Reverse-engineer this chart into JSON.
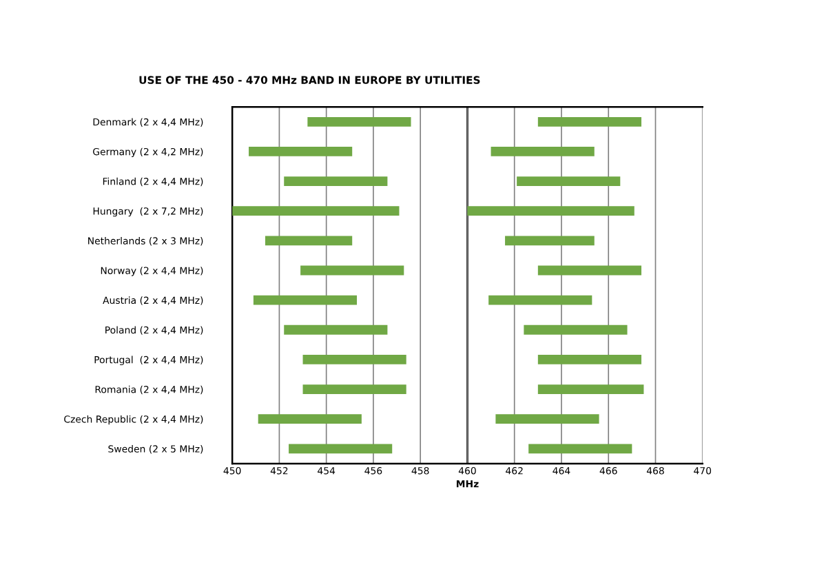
{
  "chart_data": {
    "type": "bar",
    "orientation": "horizontal",
    "title": "USE OF THE 450 - 470 MHz BAND IN EUROPE BY UTILITIES",
    "xlabel": "MHz",
    "categories": [
      "Denmark (2 x 4,4 MHz)",
      "Germany (2 x 4,2 MHz)",
      "Finland (2 x 4,4 MHz)",
      "Hungary  (2 x 7,2 MHz)",
      "Netherlands (2 x 3 MHz)",
      "Norway (2 x 4,4 MHz)",
      "Austria (2 x 4,4 MHz)",
      "Poland (2 x 4,4 MHz)",
      "Portugal  (2 x 4,4 MHz)",
      "Romania (2 x 4,4 MHz)",
      "Czech Republic (2 x 4,4 MHz)",
      "Sweden (2 x 5 MHz)"
    ],
    "series": [
      {
        "color": "#70a845",
        "base": [
          453.2,
          450.7,
          452.2,
          450.0,
          451.4,
          452.9,
          450.9,
          452.2,
          453.0,
          453.0,
          451.1,
          452.4
        ],
        "values": [
          4.4,
          4.4,
          4.4,
          7.1,
          3.7,
          4.4,
          4.4,
          4.4,
          4.4,
          4.4,
          4.4,
          4.4
        ]
      },
      {
        "color": "#70a845",
        "base": [
          463.0,
          461.0,
          462.1,
          460.0,
          461.6,
          463.0,
          460.9,
          462.4,
          463.0,
          463.0,
          461.2,
          462.6
        ],
        "values": [
          4.4,
          4.4,
          4.4,
          7.1,
          3.8,
          4.4,
          4.4,
          4.4,
          4.4,
          4.5,
          4.4,
          4.4
        ]
      }
    ],
    "xlim": [
      450,
      470
    ],
    "xticks": [
      450,
      452,
      454,
      456,
      458,
      460,
      462,
      464,
      466,
      468,
      470
    ],
    "grid": "x",
    "legend": false,
    "ref_lines": [
      {
        "axis": "x",
        "value": 460,
        "color": "#000000"
      }
    ]
  }
}
